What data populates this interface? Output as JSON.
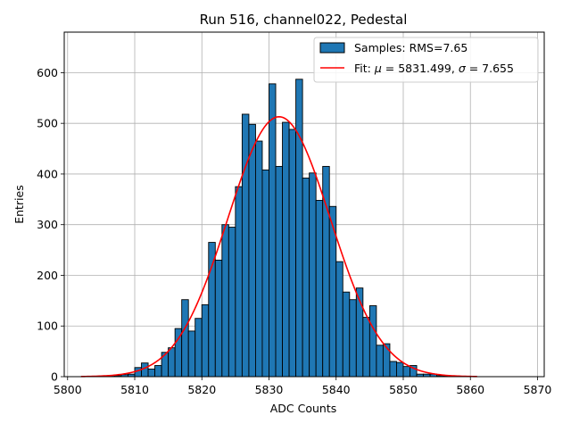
{
  "chart_data": {
    "type": "bar",
    "title": "Run 516, channel022, Pedestal",
    "xlabel": "ADC Counts",
    "ylabel": "Entries",
    "xlim": [
      5799.5,
      5871.0
    ],
    "ylim": [
      0,
      680
    ],
    "grid": true,
    "legend_position": "top-right",
    "x_ticks": [
      5800,
      5810,
      5820,
      5830,
      5840,
      5850,
      5860,
      5870
    ],
    "y_ticks": [
      0,
      100,
      200,
      300,
      400,
      500,
      600
    ],
    "bin_width": 1,
    "histogram": {
      "name": "Samples: RMS=7.65",
      "color": "#1f77b4",
      "edge_color": "#000000",
      "bin_left_edges": [
        5802,
        5803,
        5804,
        5805,
        5806,
        5807,
        5808,
        5809,
        5810,
        5811,
        5812,
        5813,
        5814,
        5815,
        5816,
        5817,
        5818,
        5819,
        5820,
        5821,
        5822,
        5823,
        5824,
        5825,
        5826,
        5827,
        5828,
        5829,
        5830,
        5831,
        5832,
        5833,
        5834,
        5835,
        5836,
        5837,
        5838,
        5839,
        5840,
        5841,
        5842,
        5843,
        5844,
        5845,
        5846,
        5847,
        5848,
        5849,
        5850,
        5851,
        5852,
        5853,
        5854,
        5855,
        5856,
        5857,
        5858,
        5859,
        5860
      ],
      "values": [
        0,
        0,
        1,
        1,
        2,
        2,
        4,
        5,
        18,
        27,
        15,
        22,
        48,
        57,
        95,
        152,
        90,
        115,
        142,
        265,
        230,
        300,
        295,
        375,
        518,
        498,
        465,
        408,
        578,
        415,
        502,
        488,
        587,
        392,
        402,
        348,
        415,
        336,
        227,
        167,
        152,
        175,
        117,
        140,
        62,
        65,
        30,
        28,
        20,
        22,
        5,
        5,
        5,
        2,
        1,
        1,
        0,
        0,
        0
      ]
    },
    "fit": {
      "name_prefix": "Fit: ",
      "name_mu": "μ",
      "name_mu_text": " = 5831.499, ",
      "name_sigma": "σ",
      "name_sigma_text": " = 7.655",
      "color": "#ff0000",
      "mu": 5831.499,
      "sigma": 7.655,
      "amplitude": 513,
      "x_range": [
        5802,
        5861
      ]
    }
  }
}
